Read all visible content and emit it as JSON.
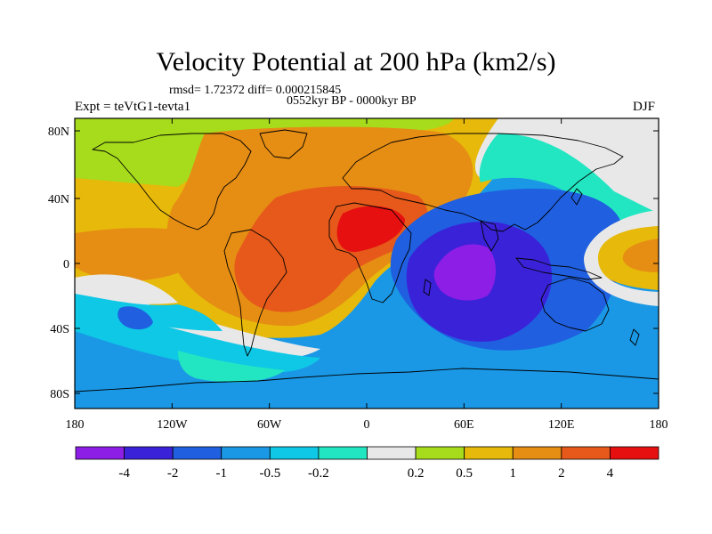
{
  "title": "Velocity Potential at 200 hPa (km2/s)",
  "stats": "rmsd= 1.72372 diff= 0.000215845",
  "experiment": "Expt = teVtG1-tevta1",
  "period": "0552kyr BP - 0000kyr BP",
  "season": "DJF",
  "axes": {
    "x_ticks": [
      "180",
      "120W",
      "60W",
      "0",
      "60E",
      "120E",
      "180"
    ],
    "y_ticks": [
      "80N",
      "40N",
      "0",
      "40S",
      "80S"
    ]
  },
  "colorbar": {
    "colors": [
      "#8c1ee6",
      "#3a22d8",
      "#1f5fe0",
      "#1a98e6",
      "#0ec8e6",
      "#22e6c2",
      "#e8e8e8",
      "#a6dc1c",
      "#e6b90a",
      "#e68d14",
      "#e6591a",
      "#e61010"
    ],
    "labels": [
      "-4",
      "-2",
      "-1",
      "-0.5",
      "-0.2",
      "0.2",
      "0.5",
      "1",
      "2",
      "4"
    ]
  }
}
